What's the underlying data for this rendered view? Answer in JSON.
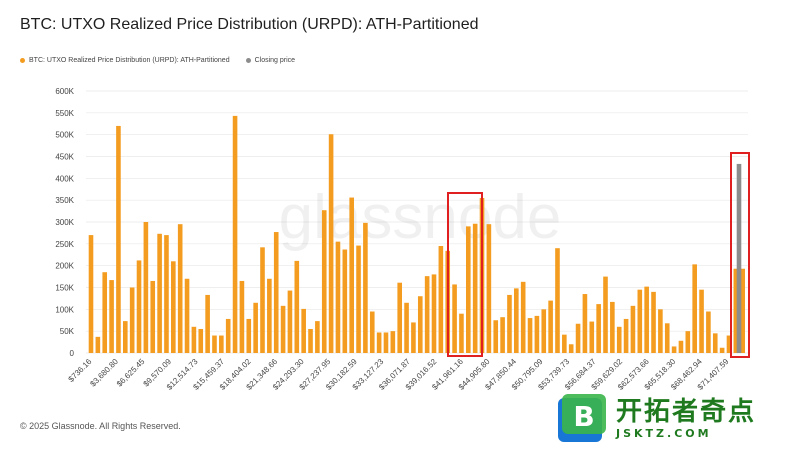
{
  "page": {
    "title": "BTC: UTXO Realized Price Distribution (URPD): ATH-Partitioned",
    "footer": "© 2025 Glassnode. All Rights Reserved.",
    "watermark": "glassnode",
    "logo_cn": "开拓者奇点",
    "logo_en": "JSKTZ.COM"
  },
  "colors": {
    "bar": "#f39c1f",
    "closing": "#8c8c8c",
    "highlight": "#e02020",
    "grid": "#e8e8e8",
    "logo_blue": "#1877d6",
    "logo_green": "#3ab54a"
  },
  "chart_data": {
    "type": "bar",
    "title": "BTC: UTXO Realized Price Distribution (URPD): ATH-Partitioned",
    "xlabel": "",
    "ylabel": "",
    "ylim": [
      0,
      600000
    ],
    "yticks": [
      "0",
      "50K",
      "100K",
      "150K",
      "200K",
      "250K",
      "300K",
      "350K",
      "400K",
      "450K",
      "500K",
      "550K",
      "600K"
    ],
    "legend": {
      "placement": "top-left"
    },
    "xtick_labels": [
      "$736.16",
      "$3,680.80",
      "$6,625.45",
      "$9,570.09",
      "$12,514.73",
      "$15,459.37",
      "$18,404.02",
      "$21,348.66",
      "$24,293.30",
      "$27,237.95",
      "$30,182.59",
      "$33,127.23",
      "$36,071.87",
      "$39,016.52",
      "$41,961.16",
      "$44,905.80",
      "$47,850.44",
      "$50,795.09",
      "$53,739.73",
      "$56,684.37",
      "$59,629.02",
      "$62,573.66",
      "$65,518.30",
      "$68,462.94",
      "$71,407.59"
    ],
    "series": [
      {
        "name": "BTC: UTXO Realized Price Distribution (URPD): ATH-Partitioned",
        "values": [
          270000,
          37000,
          185000,
          167000,
          520000,
          73000,
          150000,
          212000,
          300000,
          165000,
          273000,
          270000,
          210000,
          295000,
          170000,
          60000,
          55000,
          133000,
          40000,
          40000,
          78000,
          543000,
          165000,
          78000,
          115000,
          242000,
          170000,
          277000,
          108000,
          143000,
          211000,
          101000,
          55000,
          73000,
          327000,
          501000,
          255000,
          237000,
          356000,
          246000,
          298000,
          95000,
          47000,
          47000,
          50000,
          161000,
          115000,
          70000,
          130000,
          176000,
          180000,
          245000,
          234000,
          157000,
          90000,
          290000,
          296000,
          355000,
          295000,
          75000,
          82000,
          133000,
          148000,
          163000,
          80000,
          85000,
          100000,
          120000,
          240000,
          42000,
          20000,
          67000,
          135000,
          72000,
          112000,
          175000,
          117000,
          60000,
          78000,
          108000,
          145000,
          152000,
          140000,
          100000,
          68000,
          15000,
          28000,
          50000,
          203000,
          145000,
          95000,
          45000,
          12000,
          40000,
          193000,
          193000
        ]
      },
      {
        "name": "Closing price",
        "values": [
          433000
        ]
      }
    ]
  }
}
